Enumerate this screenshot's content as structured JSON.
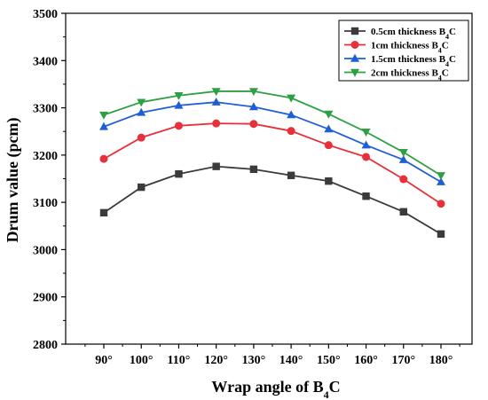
{
  "chart_data": {
    "type": "line",
    "title": "",
    "xlabel": "Wrap angle of B",
    "xlabel_sub": "4",
    "xlabel_tail": "C",
    "ylabel": "Drum value (pcm)",
    "x": [
      "90°",
      "100°",
      "110°",
      "120°",
      "130°",
      "140°",
      "150°",
      "160°",
      "170°",
      "180°"
    ],
    "ylim": [
      2800,
      3500
    ],
    "yticks": [
      "2800",
      "2900",
      "3000",
      "3100",
      "3200",
      "3300",
      "3400",
      "3500"
    ],
    "grid": false,
    "legend_position": "top-right",
    "series": [
      {
        "name": "0.5cm thickness B",
        "name_sub": "4",
        "name_tail": "C",
        "color": "#3b3b3b",
        "marker": "square",
        "values": [
          3078,
          3132,
          3160,
          3176,
          3170,
          3157,
          3145,
          3113,
          3080,
          3033
        ]
      },
      {
        "name": "1cm thickness B",
        "name_sub": "4",
        "name_tail": "C",
        "color": "#e8303a",
        "marker": "circle",
        "values": [
          3192,
          3237,
          3262,
          3267,
          3266,
          3251,
          3221,
          3196,
          3149,
          3097
        ]
      },
      {
        "name": "1.5cm thickness B",
        "name_sub": "4",
        "name_tail": "C",
        "color": "#1f5fd6",
        "marker": "triangle-up",
        "values": [
          3260,
          3290,
          3305,
          3312,
          3302,
          3285,
          3255,
          3221,
          3190,
          3143
        ]
      },
      {
        "name": "2cm thickness B",
        "name_sub": "4",
        "name_tail": "C",
        "color": "#2ea043",
        "marker": "triangle-down",
        "values": [
          3285,
          3312,
          3326,
          3335,
          3335,
          3321,
          3287,
          3249,
          3206,
          3157
        ]
      }
    ]
  }
}
